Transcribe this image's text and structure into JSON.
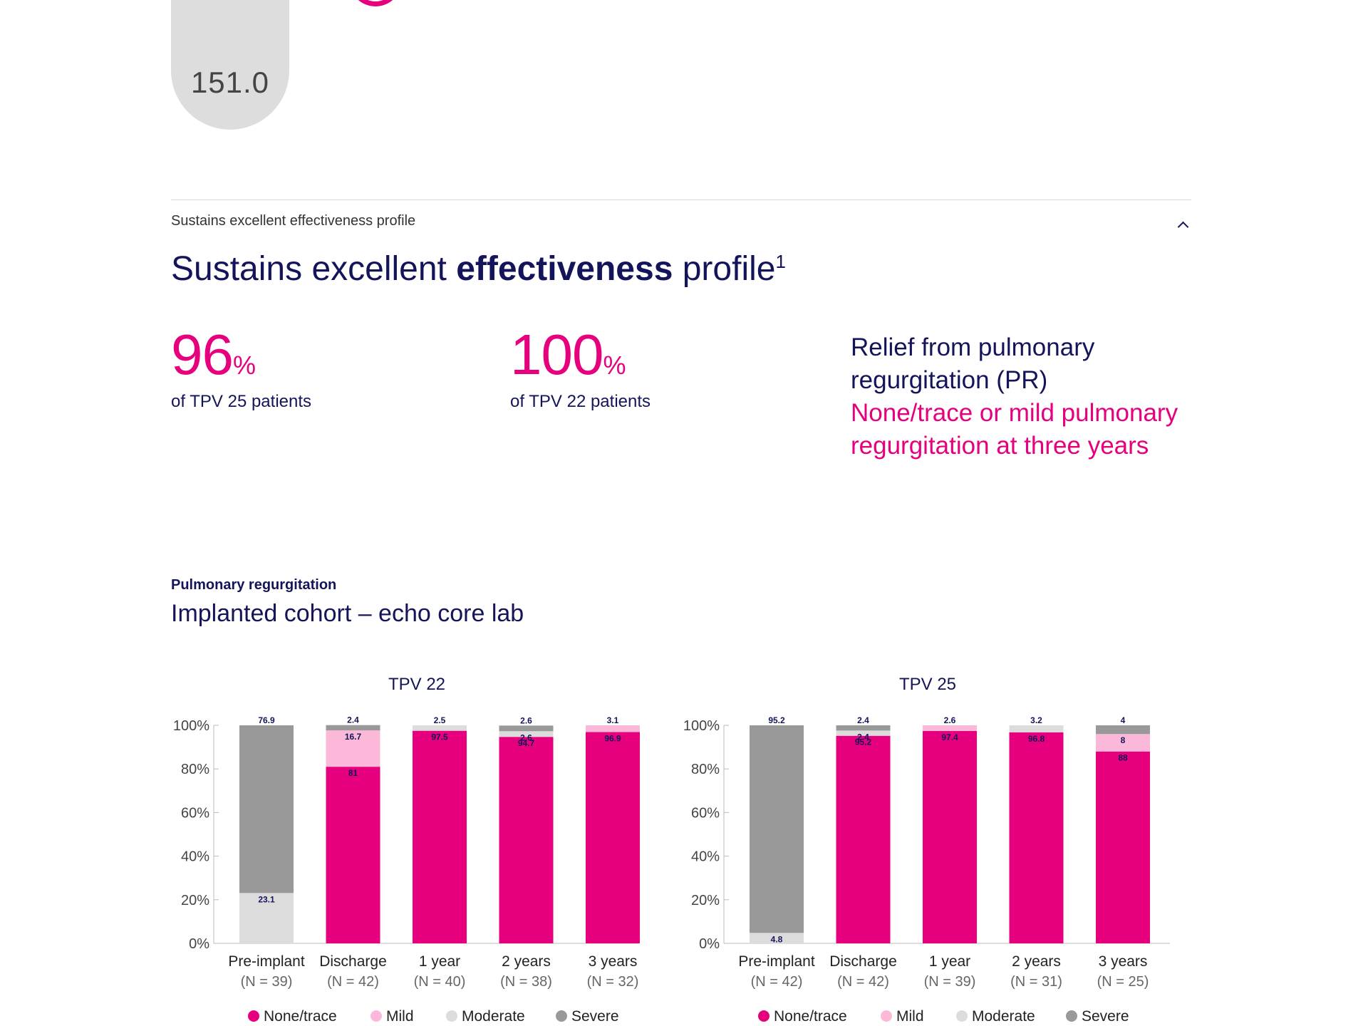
{
  "top_card": {
    "value": "151.0"
  },
  "accordion": {
    "label": "Sustains excellent effectiveness profile",
    "toggle_icon": "chevron-up-icon"
  },
  "section": {
    "title_pre": "Sustains excellent ",
    "title_bold": "effectiveness",
    "title_post": " profile",
    "title_sup": "1"
  },
  "stats": [
    {
      "value": "96",
      "unit": "%",
      "caption": "of TPV 25 patients"
    },
    {
      "value": "100",
      "unit": "%",
      "caption": "of TPV 22 patients"
    }
  ],
  "relief": {
    "heading": "Relief from pulmonary regurgitation (PR)",
    "sub": "None/trace or mild pulmonary regurgitation at three years"
  },
  "chart_section": {
    "kicker": "Pulmonary regurgitation",
    "heading": "Implanted cohort – echo core lab"
  },
  "colors": {
    "accent": "#e6007e",
    "navy": "#14145a",
    "mild": "#fbb8d8",
    "moderate": "#dcdcdc",
    "severe": "#999999"
  },
  "chart_data": [
    {
      "type": "bar",
      "stacked": true,
      "title": "TPV 22",
      "categories": [
        "Pre-implant",
        "Discharge",
        "1 year",
        "2 years",
        "3 years"
      ],
      "n_labels": [
        "(N = 39)",
        "(N = 42)",
        "(N = 40)",
        "(N = 38)",
        "(N = 32)"
      ],
      "ylim": [
        0,
        100
      ],
      "yticks": [
        "0%",
        "20%",
        "40%",
        "60%",
        "80%",
        "100%"
      ],
      "series": [
        {
          "name": "None/trace",
          "color": "#e6007e",
          "values": [
            0,
            81,
            97.5,
            94.7,
            96.9
          ],
          "labels": [
            "",
            "81",
            "97.5",
            "94.7",
            "96.9"
          ]
        },
        {
          "name": "Mild",
          "color": "#fbb8d8",
          "values": [
            0,
            16.7,
            0,
            0,
            3.1
          ],
          "labels": [
            "",
            "16.7",
            "",
            "",
            "3.1"
          ]
        },
        {
          "name": "Moderate",
          "color": "#dcdcdc",
          "values": [
            23.1,
            0,
            2.5,
            2.6,
            0
          ],
          "labels": [
            "23.1",
            "",
            "2.5",
            "2.6",
            ""
          ]
        },
        {
          "name": "Severe",
          "color": "#999999",
          "values": [
            76.9,
            2.4,
            0,
            2.6,
            0
          ],
          "labels": [
            "76.9",
            "2.4",
            "",
            "2.6",
            ""
          ]
        }
      ],
      "legend": "bottom"
    },
    {
      "type": "bar",
      "stacked": true,
      "title": "TPV 25",
      "categories": [
        "Pre-implant",
        "Discharge",
        "1 year",
        "2 years",
        "3 years"
      ],
      "n_labels": [
        "(N = 42)",
        "(N = 42)",
        "(N = 39)",
        "(N = 31)",
        "(N = 25)"
      ],
      "ylim": [
        0,
        100
      ],
      "yticks": [
        "0%",
        "20%",
        "40%",
        "60%",
        "80%",
        "100%"
      ],
      "series": [
        {
          "name": "None/trace",
          "color": "#e6007e",
          "values": [
            0,
            95.2,
            97.4,
            96.8,
            88
          ],
          "labels": [
            "",
            "95.2",
            "97.4",
            "96.8",
            "88"
          ]
        },
        {
          "name": "Mild",
          "color": "#fbb8d8",
          "values": [
            0,
            0,
            2.6,
            0,
            8
          ],
          "labels": [
            "",
            "",
            "2.6",
            "",
            "8"
          ]
        },
        {
          "name": "Moderate",
          "color": "#dcdcdc",
          "values": [
            4.8,
            2.4,
            0,
            3.2,
            0
          ],
          "labels": [
            "4.8",
            "2.4",
            "",
            "3.2",
            ""
          ]
        },
        {
          "name": "Severe",
          "color": "#999999",
          "values": [
            95.2,
            2.4,
            0,
            0,
            4
          ],
          "labels": [
            "95.2",
            "2.4",
            "",
            "",
            "4"
          ]
        }
      ],
      "legend": "bottom"
    }
  ]
}
